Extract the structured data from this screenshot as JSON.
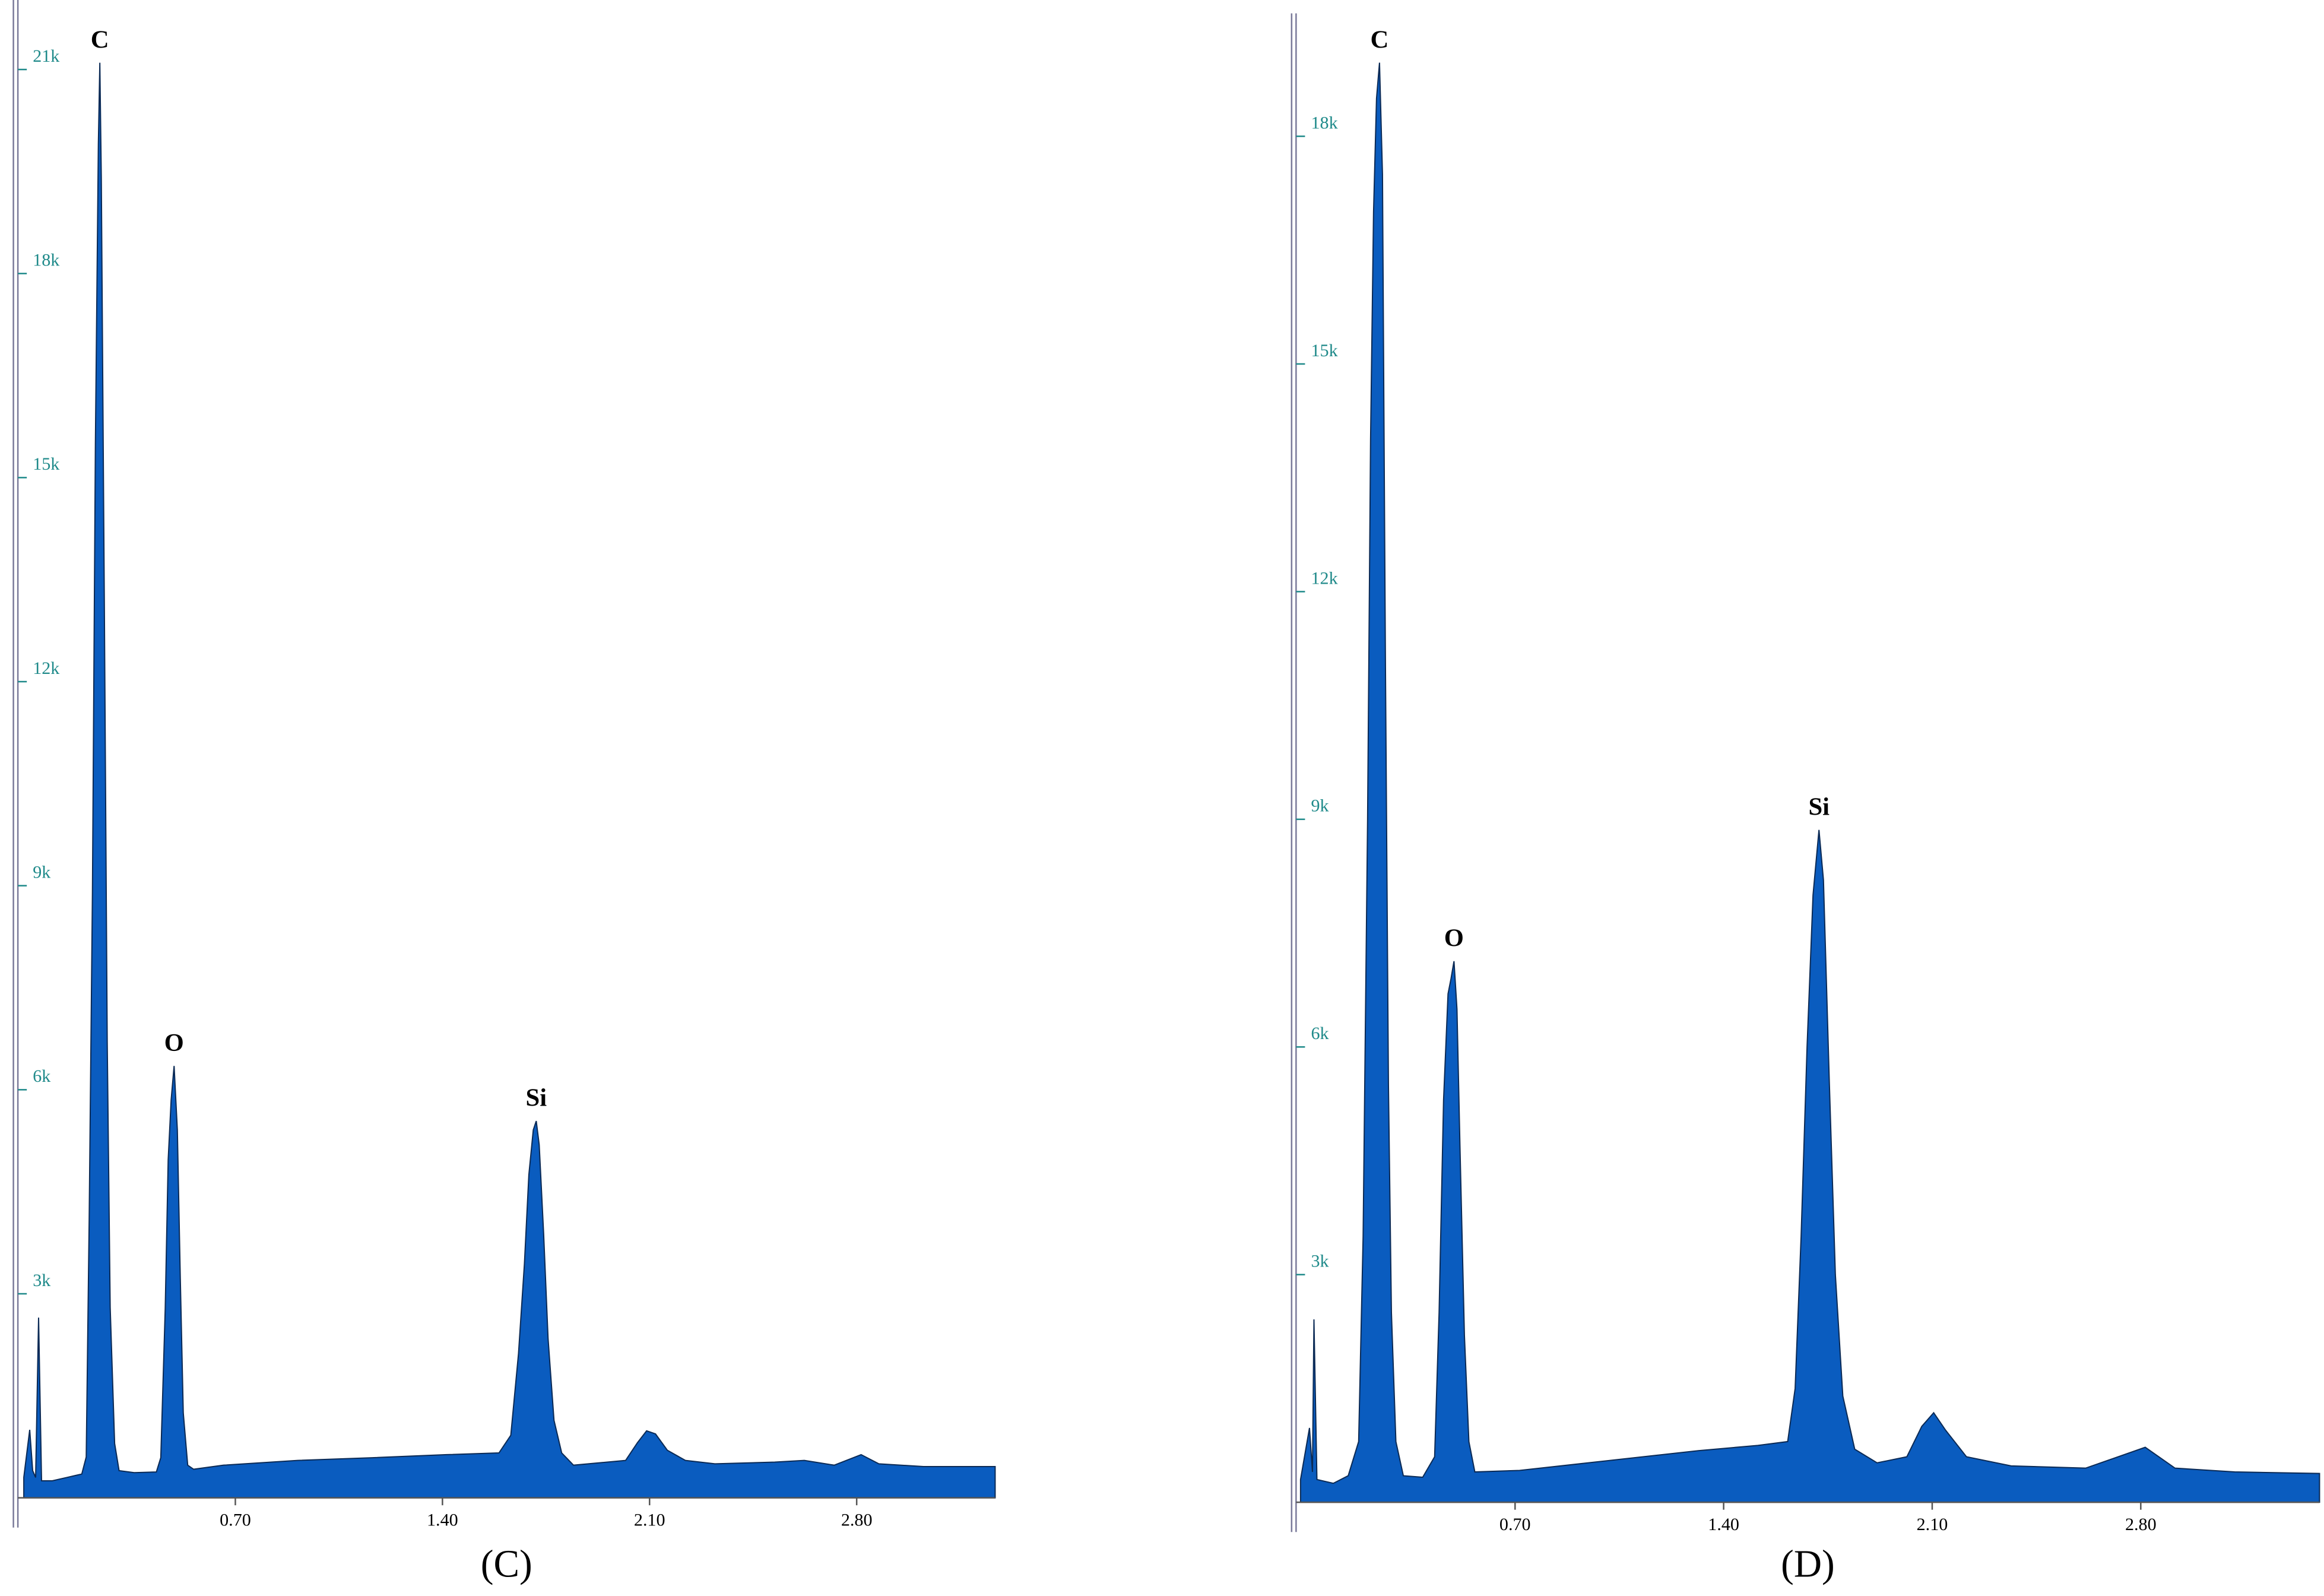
{
  "chart_data": [
    {
      "type": "area",
      "caption": "(C)",
      "color": "#0a5cbf",
      "x": [
        -0.015,
        0.005,
        0.015,
        0.025,
        0.035,
        0.045,
        0.081,
        0.131,
        0.181,
        0.196,
        0.206,
        0.217,
        0.227,
        0.237,
        0.242,
        0.247,
        0.257,
        0.267,
        0.277,
        0.292,
        0.307,
        0.358,
        0.433,
        0.448,
        0.463,
        0.473,
        0.483,
        0.493,
        0.504,
        0.514,
        0.524,
        0.539,
        0.559,
        0.66,
        0.911,
        1.163,
        1.415,
        1.591,
        1.631,
        1.657,
        1.677,
        1.692,
        1.707,
        1.717,
        1.727,
        1.742,
        1.757,
        1.777,
        1.803,
        1.843,
        2.019,
        2.059,
        2.09,
        2.12,
        2.16,
        2.221,
        2.321,
        2.523,
        2.623,
        2.724,
        2.815,
        2.875,
        3.026,
        3.268
      ],
      "values": [
        300,
        1000,
        400,
        300,
        2650,
        250,
        250,
        300,
        350,
        600,
        4100,
        8900,
        15500,
        19900,
        21100,
        19400,
        13300,
        6700,
        2800,
        800,
        400,
        370,
        380,
        590,
        2780,
        4970,
        5850,
        6350,
        5410,
        3220,
        1250,
        480,
        420,
        480,
        550,
        590,
        635,
        660,
        920,
        2120,
        3440,
        4750,
        5410,
        5540,
        5190,
        3880,
        2340,
        1140,
        660,
        480,
        550,
        810,
        985,
        940,
        700,
        550,
        500,
        525,
        550,
        480,
        635,
        500,
        460,
        460
      ],
      "xlim": [
        -0.035,
        3.268
      ],
      "xticks": [
        {
          "value": 0.7,
          "label": "0.70"
        },
        {
          "value": 1.4,
          "label": "1.40"
        },
        {
          "value": 2.1,
          "label": "2.10"
        },
        {
          "value": 2.8,
          "label": "2.80"
        }
      ],
      "ylim": [
        0,
        22000
      ],
      "yticks": [
        {
          "value": 3000,
          "label": "3k"
        },
        {
          "value": 6000,
          "label": "6k"
        },
        {
          "value": 9000,
          "label": "9k"
        },
        {
          "value": 12000,
          "label": "12k"
        },
        {
          "value": 15000,
          "label": "15k"
        },
        {
          "value": 18000,
          "label": "18k"
        },
        {
          "value": 21000,
          "label": "21k"
        }
      ],
      "annotations": [
        {
          "text": "C",
          "x": 0.242,
          "y": 21100
        },
        {
          "text": "O",
          "x": 0.493,
          "y": 6350
        },
        {
          "text": "Si",
          "x": 1.717,
          "y": 5540
        }
      ]
    },
    {
      "type": "area",
      "caption": "(D)",
      "color": "#0a5cbf",
      "x": [
        -0.02,
        0.01,
        0.02,
        0.025,
        0.035,
        0.09,
        0.14,
        0.175,
        0.19,
        0.205,
        0.215,
        0.225,
        0.235,
        0.245,
        0.255,
        0.265,
        0.275,
        0.285,
        0.3,
        0.325,
        0.39,
        0.43,
        0.445,
        0.46,
        0.475,
        0.485,
        0.495,
        0.505,
        0.515,
        0.53,
        0.545,
        0.565,
        0.715,
        1.015,
        1.315,
        1.515,
        1.615,
        1.64,
        1.66,
        1.68,
        1.7,
        1.72,
        1.735,
        1.755,
        1.775,
        1.8,
        1.84,
        1.915,
        2.015,
        2.065,
        2.105,
        2.145,
        2.215,
        2.365,
        2.615,
        2.815,
        2.915,
        3.115,
        3.4
      ],
      "values": [
        300,
        980,
        400,
        2410,
        300,
        250,
        350,
        800,
        3500,
        9000,
        14000,
        17000,
        18500,
        18970,
        17500,
        11000,
        5500,
        2500,
        800,
        350,
        330,
        600,
        2500,
        5300,
        6700,
        6900,
        7130,
        6500,
        4700,
        2200,
        800,
        400,
        420,
        550,
        680,
        750,
        800,
        1500,
        3500,
        6000,
        8000,
        8860,
        8200,
        5500,
        3000,
        1400,
        700,
        520,
        600,
        1000,
        1180,
        950,
        600,
        480,
        450,
        725,
        450,
        400,
        380
      ],
      "xlim": [
        -0.035,
        3.4
      ],
      "xticks": [
        {
          "value": 0.7,
          "label": "0.70"
        },
        {
          "value": 1.4,
          "label": "1.40"
        },
        {
          "value": 2.1,
          "label": "2.10"
        },
        {
          "value": 2.8,
          "label": "2.80"
        }
      ],
      "ylim": [
        0,
        19600
      ],
      "yticks": [
        {
          "value": 3000,
          "label": "3k"
        },
        {
          "value": 6000,
          "label": "6k"
        },
        {
          "value": 9000,
          "label": "9k"
        },
        {
          "value": 12000,
          "label": "12k"
        },
        {
          "value": 15000,
          "label": "15k"
        },
        {
          "value": 18000,
          "label": "18k"
        }
      ],
      "annotations": [
        {
          "text": "C",
          "x": 0.245,
          "y": 18970
        },
        {
          "text": "O",
          "x": 0.495,
          "y": 7130
        },
        {
          "text": "Si",
          "x": 1.72,
          "y": 8860
        }
      ]
    }
  ]
}
